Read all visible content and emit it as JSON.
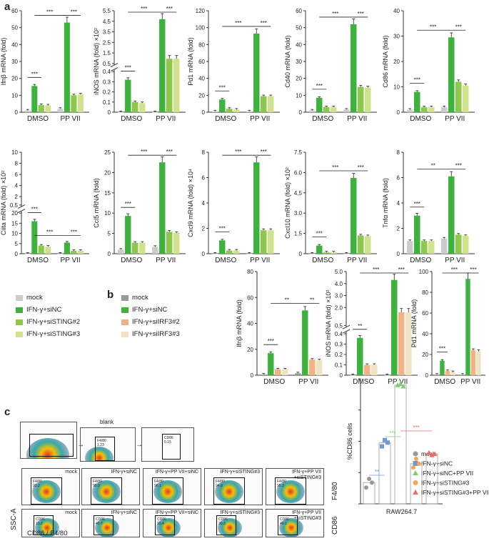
{
  "panels": {
    "a": "a",
    "b": "b",
    "c": "c"
  },
  "colors": {
    "mock": "#cccccc",
    "siNC": "#3db33d",
    "siSTING2": "#8cc94a",
    "siSTING3": "#cfe38f",
    "siIRF3_2": "#f4b183",
    "siIRF3_3": "#efe3c2",
    "axis": "#333333"
  },
  "legend_a": [
    "mock",
    "IFN-γ+siNC",
    "IFN-γ+siSTING#2",
    "IFN-γ+siSTING#3"
  ],
  "legend_b": [
    "mock",
    "IFN-γ+siNC",
    "IFN-γ+siIRF3#2",
    "IFN-γ+siIRF3#3"
  ],
  "chart_data": [
    {
      "type": "bar",
      "ylabel": "Ifnβ mRNA (fold)",
      "categories": [
        "DMSO",
        "PP VII"
      ],
      "ylim": [
        0,
        60
      ],
      "yticks": [
        "0",
        "10",
        "20",
        "30",
        "40",
        "50",
        "60"
      ],
      "values": [
        [
          1,
          15.5,
          4.2,
          4.0
        ],
        [
          2,
          53,
          10,
          10.5
        ]
      ],
      "sig": [
        "***",
        "***",
        "***"
      ]
    },
    {
      "type": "bar",
      "ylabel": "iNOS mRNA (fold) ×10²",
      "categories": [
        "DMSO",
        "PP VII"
      ],
      "broken_axis": true,
      "yticks_low": [
        "0",
        "0.1",
        "0.2",
        "0.3",
        "0.4"
      ],
      "yticks_high": [
        "0.5",
        "1.5",
        "2.5",
        "3.5",
        "4.5",
        "5.5"
      ],
      "values": [
        [
          0,
          0.32,
          0.1,
          0.09
        ],
        [
          0,
          4.7,
          0.95,
          0.95
        ]
      ],
      "sig": [
        "***",
        "***",
        "***"
      ]
    },
    {
      "type": "bar",
      "ylabel": "Pd1 mRNA (fold)",
      "categories": [
        "DMSO",
        "PP VII"
      ],
      "ylim": [
        0,
        120
      ],
      "yticks": [
        "0",
        "20",
        "40",
        "60",
        "80",
        "100",
        "120"
      ],
      "values": [
        [
          1,
          15,
          4,
          3
        ],
        [
          1,
          93,
          19,
          19
        ]
      ],
      "sig": [
        "***",
        "***",
        "***"
      ]
    },
    {
      "type": "bar",
      "ylabel": "Cd40 mRNA (fold)",
      "categories": [
        "DMSO",
        "PP VII"
      ],
      "ylim": [
        0,
        60
      ],
      "yticks": [
        "0",
        "10",
        "20",
        "30",
        "40",
        "50",
        "60"
      ],
      "values": [
        [
          1,
          8.5,
          3,
          3
        ],
        [
          1.5,
          52,
          15,
          14.5
        ]
      ],
      "sig": [
        "***",
        "***",
        "***"
      ]
    },
    {
      "type": "bar",
      "ylabel": "Cd86 mRNA (fold)",
      "categories": [
        "DMSO",
        "PP VII"
      ],
      "ylim": [
        0,
        40
      ],
      "yticks": [
        "0",
        "10",
        "20",
        "30",
        "40"
      ],
      "values": [
        [
          1,
          8,
          2,
          2
        ],
        [
          2,
          29.5,
          12,
          10.5
        ]
      ],
      "sig": [
        "***",
        "***",
        "***"
      ]
    },
    {
      "type": "bar",
      "ylabel": "Ciita mRNA (fold) ×10²",
      "categories": [
        "DMSO",
        "PP VII"
      ],
      "broken_axis": true,
      "yticks_low": [
        "0",
        "5",
        "10",
        "15",
        "20"
      ],
      "yticks_high": [
        "0.5",
        "2",
        "4",
        "6",
        "8",
        "10"
      ],
      "values": [
        [
          0,
          16,
          4,
          3.5
        ],
        [
          0,
          5.5,
          1.45,
          1.4
        ]
      ],
      "sig": [
        "***",
        "***",
        "***"
      ]
    },
    {
      "type": "bar",
      "ylabel": "Ccl5 mRNA (fold)",
      "categories": [
        "DMSO",
        "PP VII"
      ],
      "ylim": [
        0,
        25
      ],
      "yticks": [
        "0",
        "5",
        "10",
        "15",
        "20",
        "25"
      ],
      "values": [
        [
          1,
          9.3,
          2.7,
          2.7
        ],
        [
          1.7,
          22.5,
          5.4,
          5.1
        ]
      ],
      "sig": [
        "***",
        "***",
        "***"
      ]
    },
    {
      "type": "bar",
      "ylabel": "Cxcl9 mRNA (fold) ×10⁴",
      "categories": [
        "DMSO",
        "PP VII"
      ],
      "ylim": [
        0,
        8
      ],
      "yticks": [
        "0",
        "2",
        "4",
        "6",
        "8"
      ],
      "values": [
        [
          0,
          1.05,
          0.25,
          0.25
        ],
        [
          0,
          7.2,
          1.85,
          1.85
        ]
      ],
      "sig": [
        "***",
        "***",
        "***"
      ]
    },
    {
      "type": "bar",
      "ylabel": "Cxcl10 mRNA (fold) ×10²",
      "categories": [
        "DMSO",
        "PP VII"
      ],
      "ylim": [
        0,
        7.5
      ],
      "yticks": [
        "0",
        "1.5",
        "3.0",
        "4.5",
        "6.0",
        "7.5"
      ],
      "values": [
        [
          0,
          0.6,
          0.1,
          0.1
        ],
        [
          0,
          5.6,
          1.35,
          1.3
        ]
      ],
      "sig": [
        "***",
        "***",
        "***"
      ]
    },
    {
      "type": "bar",
      "ylabel": "Tnfα mRNA (fold)",
      "categories": [
        "DMSO",
        "PP VII"
      ],
      "ylim": [
        0,
        8
      ],
      "yticks": [
        "0",
        "2",
        "4",
        "6",
        "8"
      ],
      "values": [
        [
          1,
          3,
          1,
          1
        ],
        [
          1.2,
          6.1,
          1.5,
          1.4
        ]
      ],
      "sig": [
        "***",
        "**",
        "***"
      ]
    },
    {
      "type": "bar",
      "ylabel": "Ifnβ mRNA (fold)",
      "categories": [
        "DMSO",
        "PP VII"
      ],
      "ylim": [
        0,
        80
      ],
      "yticks": [
        "0",
        "20",
        "40",
        "60",
        "80"
      ],
      "values": [
        [
          0.5,
          17,
          4.5,
          4.5
        ],
        [
          1.5,
          50,
          12,
          11.5
        ]
      ],
      "sig": [
        "***",
        "**",
        "**"
      ]
    },
    {
      "type": "bar",
      "ylabel": "iNOS mRNA (fold) ×10²",
      "categories": [
        "DMSO",
        "PP VII"
      ],
      "broken_axis": true,
      "yticks_low": [
        "0",
        "0.1",
        "0.2",
        "0.3",
        "0.4"
      ],
      "yticks_high": [
        "0.5",
        "2.0",
        "3.0",
        "4.0",
        "5.0"
      ],
      "values": [
        [
          0,
          0.36,
          0.1,
          0.1
        ],
        [
          0,
          4.3,
          1.6,
          1.6
        ]
      ],
      "sig": [
        "**",
        "***",
        "***"
      ]
    },
    {
      "type": "bar",
      "ylabel": "Pd1 mRNA (fold)",
      "categories": [
        "DMSO",
        "PP VII"
      ],
      "ylim": [
        0,
        100
      ],
      "yticks": [
        "0",
        "20",
        "40",
        "60",
        "80",
        "100"
      ],
      "values": [
        [
          0.5,
          14,
          4,
          3
        ],
        [
          0.5,
          93,
          24,
          23
        ]
      ],
      "sig": [
        "***",
        "***",
        "***"
      ]
    },
    {
      "type": "scatter",
      "ylabel": "%CD86 cells",
      "xlabel": "RAW264.7",
      "ylim": [
        0,
        100
      ],
      "groups": [
        {
          "name": "mock",
          "points": [
            13,
            20,
            17
          ],
          "mean": 17
        },
        {
          "name": "IFN-γ+siNC",
          "points": [
            46,
            51,
            49
          ],
          "mean": 49
        },
        {
          "name": "IFN-γ+siNC+PP VII",
          "points": [
            95,
            96,
            94
          ],
          "mean": 95
        },
        {
          "name": "IFN-γ+siSTING#3",
          "points": [
            29,
            36,
            32
          ],
          "mean": 32
        },
        {
          "name": "IFN-γ+siSTING#3+PP VII",
          "points": [
            41,
            39,
            40
          ],
          "mean": 40
        }
      ],
      "sig": [
        "**",
        "***",
        "***"
      ]
    }
  ],
  "flow": {
    "blank_title": "blank",
    "top_gates": [
      "",
      "F4/80\n1.23",
      "CD86\n0.15"
    ],
    "row_labels": [
      "mock",
      "IFN-γ+siNC",
      "IFN-γ+PP VII+siNC",
      "IFN-γ+siSTING#3",
      "IFN-γ+PP VII\n+siSTING#3"
    ],
    "f480_gates": [
      "F4/80\n93.2",
      "F4/80\n95.0",
      "F4/80\n96.1",
      "F4/80\n94.8",
      "F4/80\n95.3"
    ],
    "cd86_gates": [
      "CD86\n13.2",
      "CD86\n45.7",
      "CD86\n93.4",
      "CD86\n30.3",
      "CD86\n40.1"
    ],
    "axis_ssc": "SSC-A",
    "axis_bottom": "CD86 / F4/80",
    "side_f480": "F4/80",
    "side_cd86": "CD86",
    "fsc": "FSC-A"
  }
}
